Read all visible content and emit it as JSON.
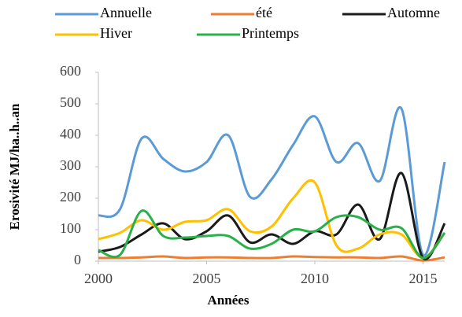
{
  "chart_data": {
    "type": "line",
    "x": [
      2000,
      2001,
      2002,
      2003,
      2004,
      2005,
      2006,
      2007,
      2008,
      2009,
      2010,
      2011,
      2012,
      2013,
      2014,
      2015,
      2016
    ],
    "series": [
      {
        "name": "Annuelle",
        "color": "#5b9bd5",
        "values": [
          145,
          165,
          390,
          325,
          285,
          315,
          400,
          205,
          260,
          370,
          460,
          315,
          375,
          255,
          485,
          20,
          315
        ]
      },
      {
        "name": "été",
        "color": "#ed7d31",
        "values": [
          10,
          10,
          12,
          15,
          10,
          12,
          12,
          10,
          10,
          15,
          13,
          12,
          12,
          10,
          15,
          2,
          12
        ]
      },
      {
        "name": "Automne",
        "color": "#1a1a1a",
        "values": [
          30,
          45,
          85,
          120,
          70,
          95,
          145,
          60,
          85,
          55,
          95,
          85,
          180,
          70,
          280,
          10,
          120
        ]
      },
      {
        "name": "Hiver",
        "color": "#ffc000",
        "values": [
          70,
          90,
          130,
          100,
          125,
          130,
          165,
          95,
          110,
          200,
          250,
          50,
          40,
          85,
          85,
          10,
          90
        ]
      },
      {
        "name": "Printemps",
        "color": "#2ab04a",
        "values": [
          35,
          20,
          160,
          80,
          75,
          80,
          80,
          40,
          55,
          100,
          95,
          140,
          140,
          100,
          105,
          10,
          90
        ]
      }
    ],
    "xlabel": "Années",
    "ylabel": "Erosivité MJ/ha..h..an",
    "xlim": [
      2000,
      2016
    ],
    "xticks": [
      2000,
      2005,
      2010,
      2015
    ],
    "ylim": [
      0,
      600
    ],
    "yticks": [
      0,
      100,
      200,
      300,
      400,
      500,
      600
    ],
    "grid": false
  }
}
